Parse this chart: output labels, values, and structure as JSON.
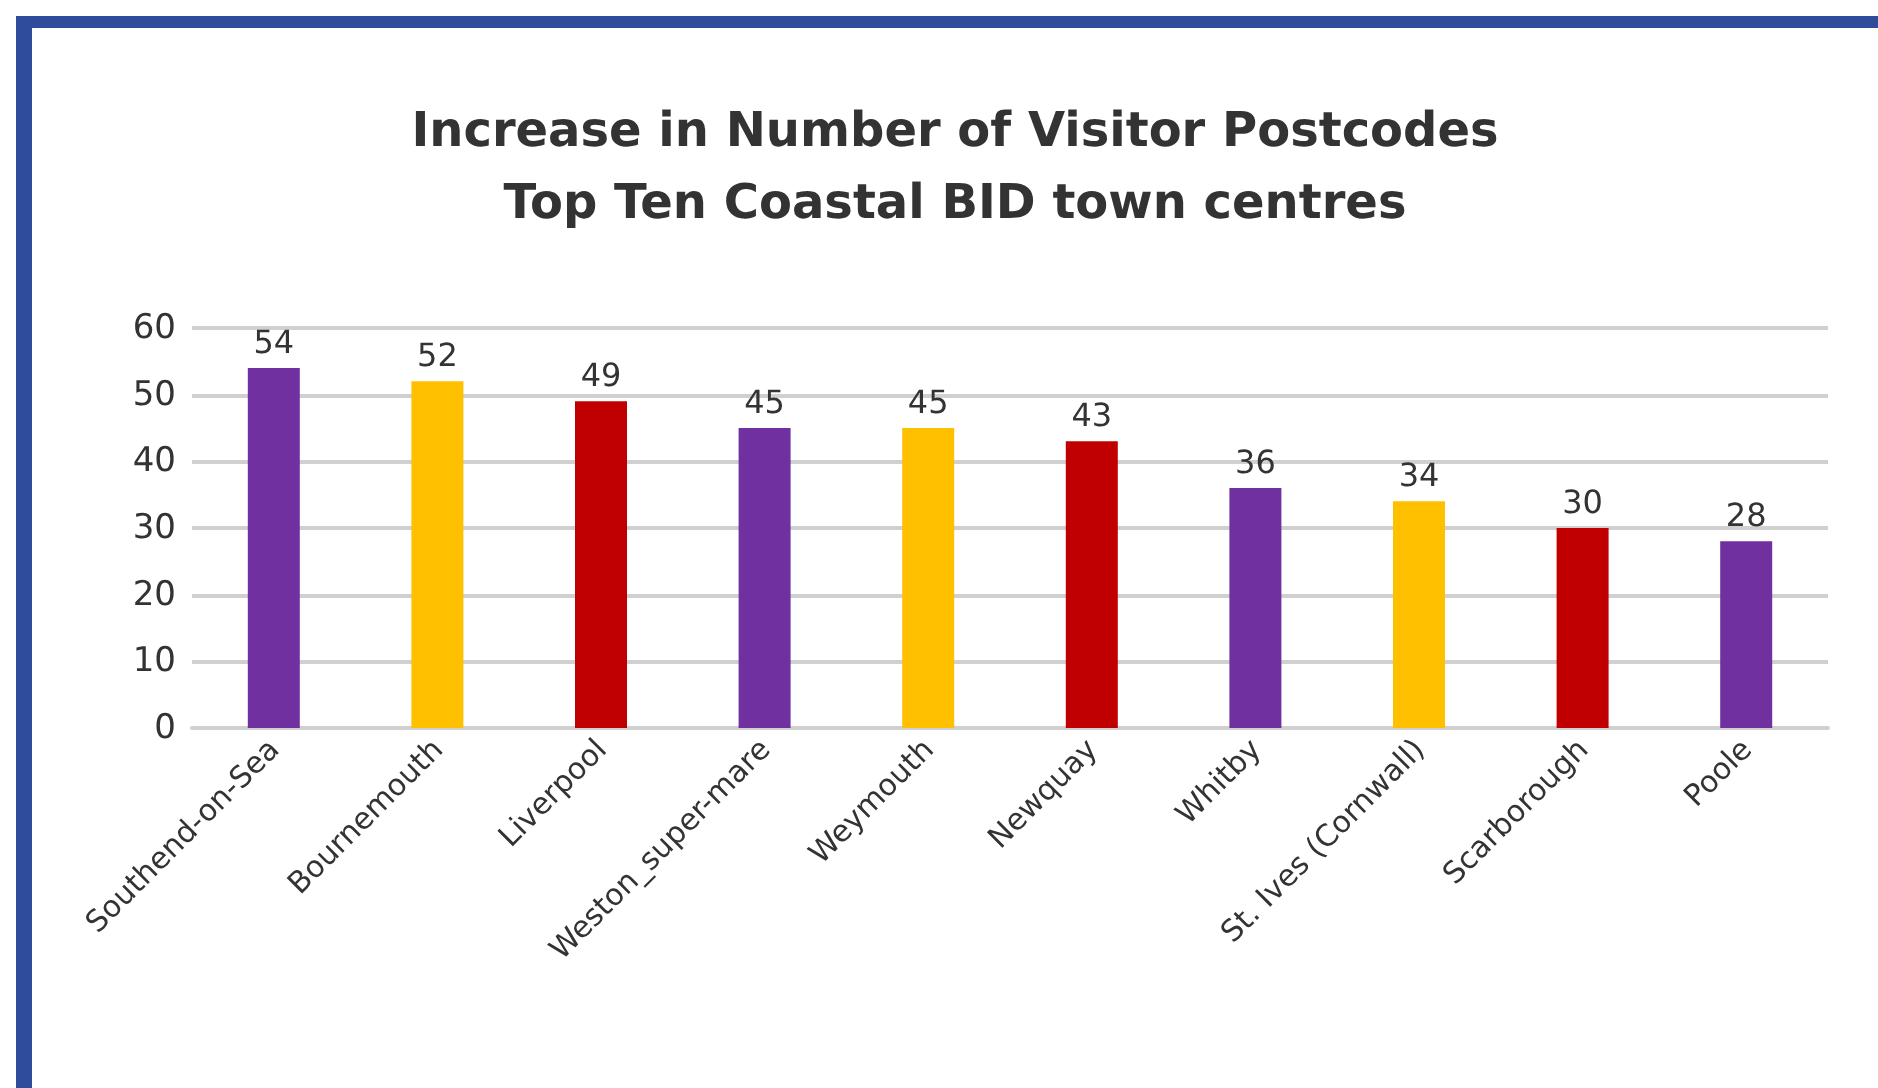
{
  "chart_data": {
    "type": "bar",
    "title": "Increase in Number of Visitor Postcodes\nTop Ten Coastal BID town centres",
    "categories": [
      "Southend-on-Sea",
      "Bournemouth",
      "Liverpool",
      "Weston_super-mare",
      "Weymouth",
      "Newquay",
      "Whitby",
      "St. Ives (Cornwall)",
      "Scarborough",
      "Poole"
    ],
    "values": [
      54,
      52,
      49,
      45,
      45,
      43,
      36,
      34,
      30,
      28
    ],
    "colors": [
      "#7030a0",
      "#ffc000",
      "#c00000",
      "#7030a0",
      "#ffc000",
      "#c00000",
      "#7030a0",
      "#ffc000",
      "#c00000",
      "#7030a0"
    ],
    "ylim": [
      0,
      60
    ],
    "yticks": [
      0,
      10,
      20,
      30,
      40,
      50,
      60
    ],
    "grid": "y",
    "data_labels": true
  }
}
